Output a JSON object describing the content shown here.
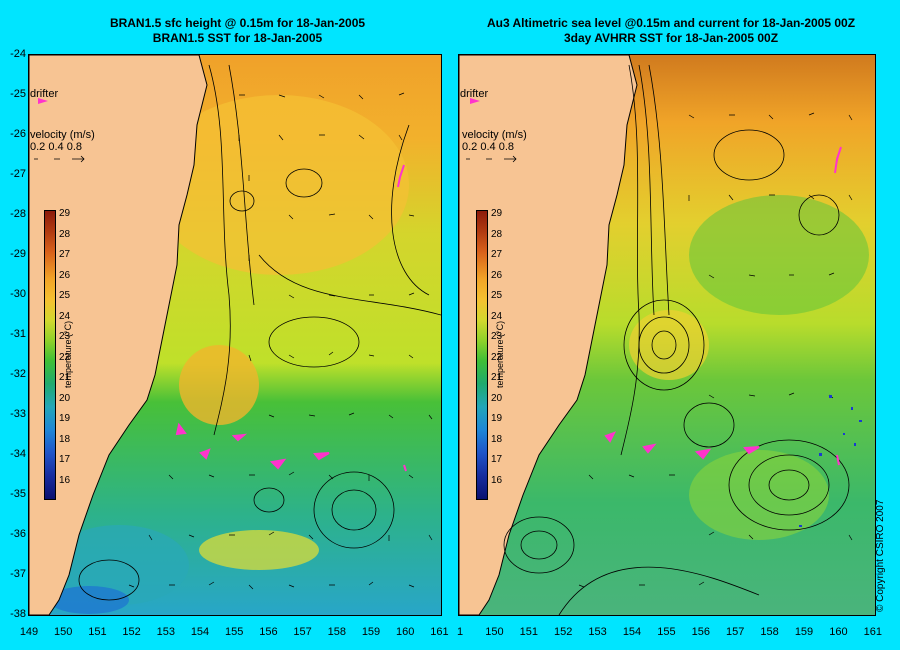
{
  "left_panel": {
    "title_line1": "BRAN1.5 sfc height @ 0.15m for 18-Jan-2005",
    "title_line2": "BRAN1.5 SST for 18-Jan-2005"
  },
  "right_panel": {
    "title_line1": "Au3 Altimetric sea level  @0.15m and current for 18-Jan-2005 00Z",
    "title_line2": "3day AVHRR SST for 18-Jan-2005 00Z"
  },
  "legend": {
    "drifter_label": "drifter",
    "velocity_label": "velocity (m/s)",
    "velocity_values": "0.2 0.4 0.8",
    "colorbar_title": "temperature (°C)",
    "colorbar_ticks": [
      "29",
      "28",
      "27",
      "26",
      "25",
      "24",
      "23",
      "22",
      "21",
      "20",
      "19",
      "18",
      "17",
      "16"
    ]
  },
  "axes": {
    "y_ticks": [
      "-24",
      "-25",
      "-26",
      "-27",
      "-28",
      "-29",
      "-30",
      "-31",
      "-32",
      "-33",
      "-34",
      "-35",
      "-36",
      "-37",
      "-38"
    ],
    "x_ticks_left": [
      "149",
      "150",
      "151",
      "152",
      "153",
      "154",
      "155",
      "156",
      "157",
      "158",
      "159",
      "160",
      "161"
    ],
    "x_ticks_right": [
      "1",
      "150",
      "151",
      "152",
      "153",
      "154",
      "155",
      "156",
      "157",
      "158",
      "159",
      "160",
      "161"
    ]
  },
  "copyright": "© Copyright CSIRO 2007",
  "colors": {
    "background": "#00e5ff",
    "land": "#f7c493",
    "drifter": "#ff33cc",
    "contour": "#000000"
  }
}
